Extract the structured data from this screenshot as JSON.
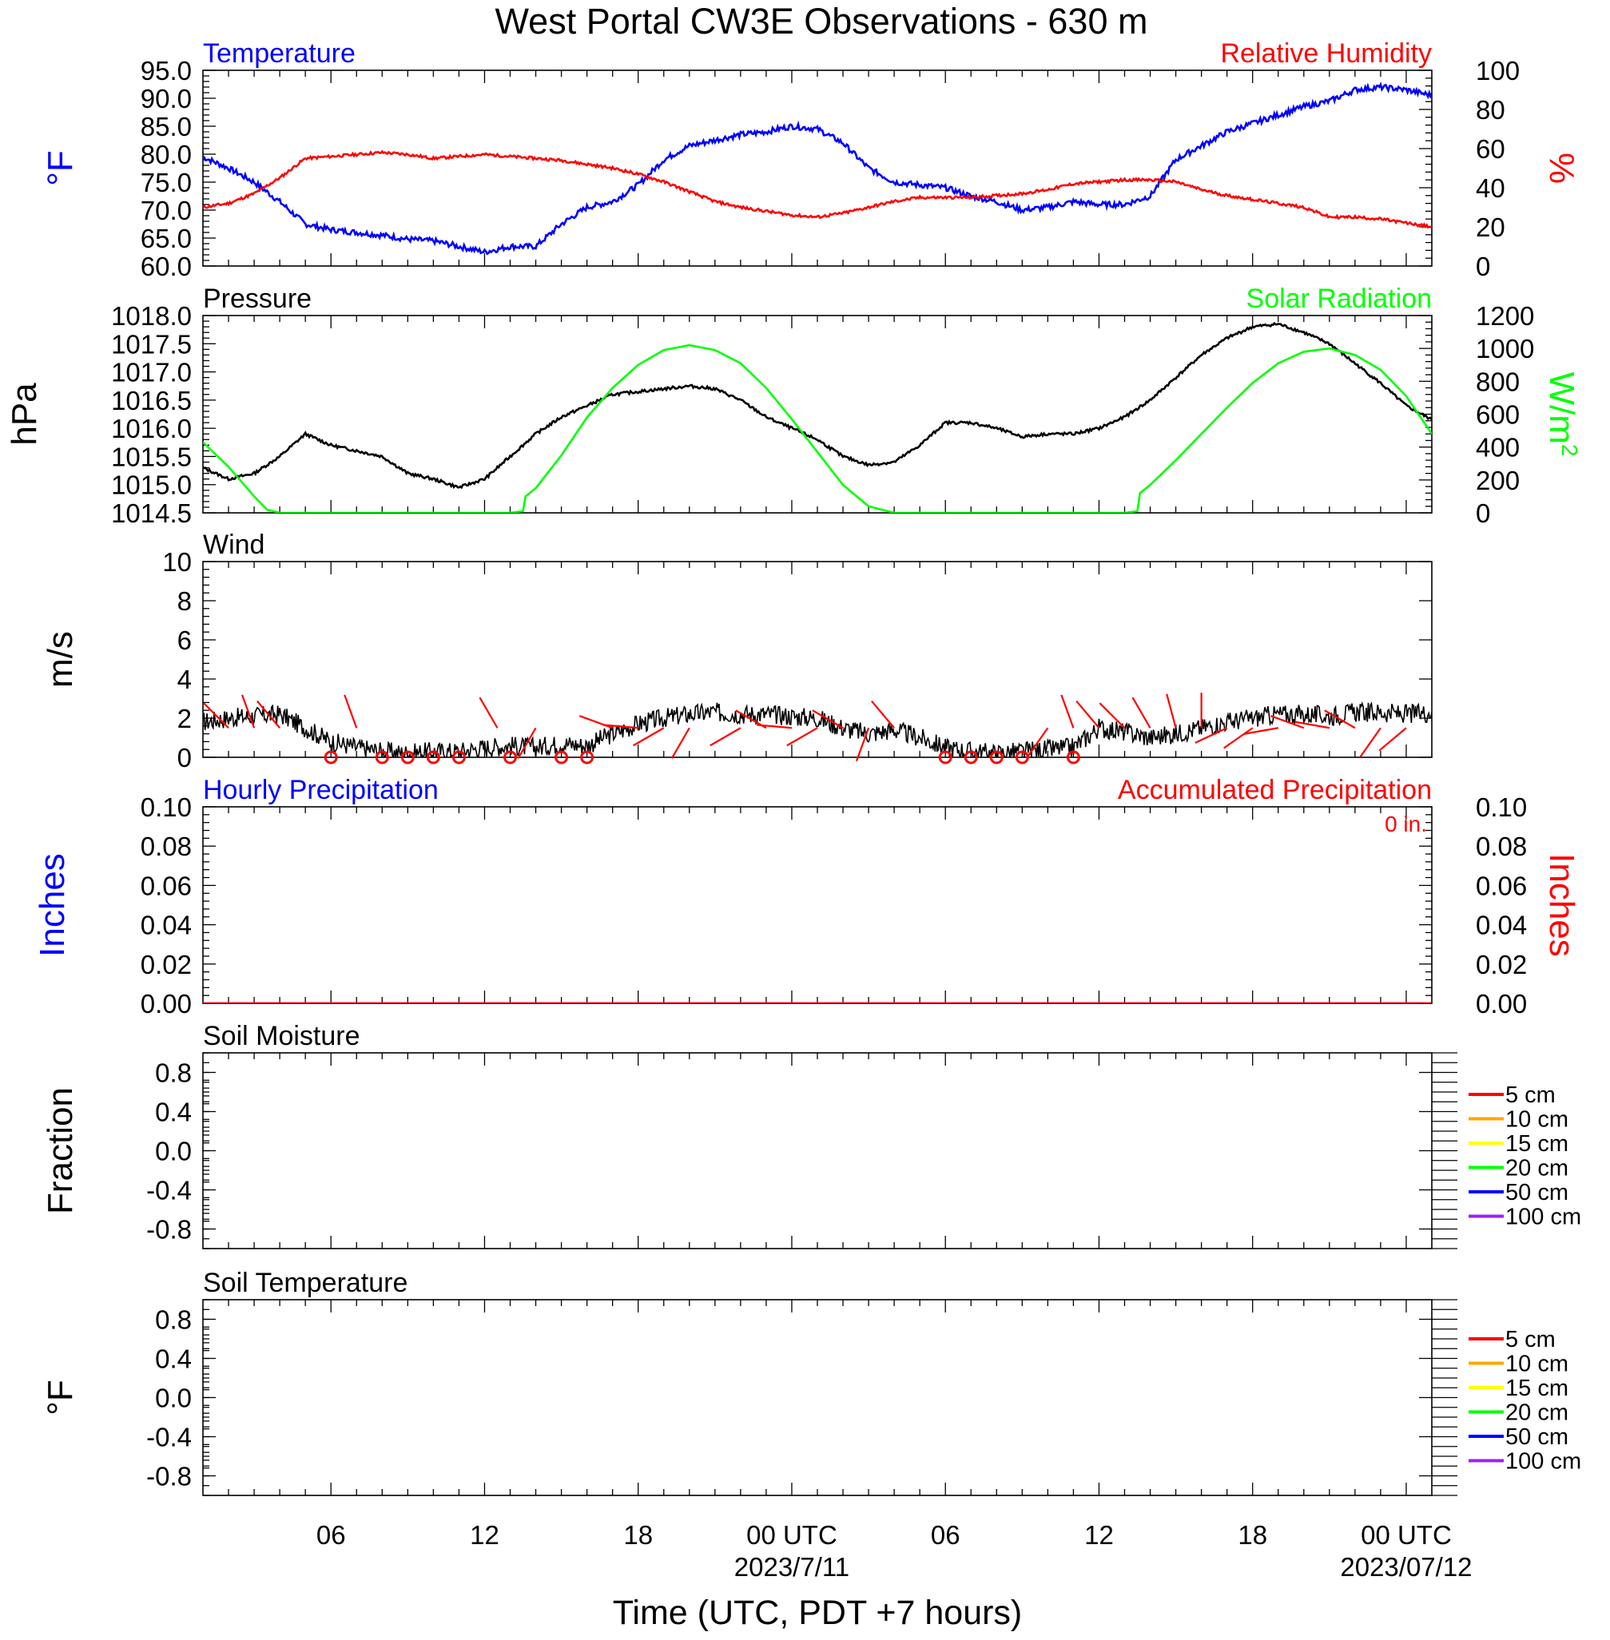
{
  "figure_title": "West Portal CW3E Observations - 630 m",
  "x_axis": {
    "label": "Time (UTC, PDT +7 hours)",
    "tick_labels": [
      "06",
      "12",
      "18",
      "00 UTC",
      "06",
      "12",
      "18",
      "00 UTC"
    ],
    "tick_hours": [
      6,
      12,
      18,
      24,
      30,
      36,
      42,
      48
    ],
    "date_labels": [
      "2023/7/11",
      "2023/07/12"
    ],
    "date_hours": [
      24,
      48
    ],
    "range_hours": [
      1,
      49
    ]
  },
  "colors": {
    "temperature": "#0000ff",
    "humidity": "#ff0000",
    "pressure": "#000000",
    "solar": "#00ff00",
    "wind": "#000000",
    "wind_barb": "#ff0000",
    "hourly_precip": "#0000ff",
    "accum_precip": "#ff0000"
  },
  "legend_colors": [
    "#ff0000",
    "#ffa500",
    "#ffff00",
    "#00ff00",
    "#0000ff",
    "#a020f0"
  ],
  "chart_data": [
    {
      "id": "temp_rh",
      "type": "line",
      "title_left": "Temperature",
      "title_right": "Relative Humidity",
      "ylabel_left": "°F",
      "ylabel_right": "%",
      "ylim_left": [
        60,
        95
      ],
      "yticks_left": [
        "95.0",
        "90.0",
        "85.0",
        "80.0",
        "75.0",
        "70.0",
        "65.0",
        "60.0"
      ],
      "ylim_right": [
        0,
        100
      ],
      "yticks_right": [
        "100",
        "80",
        "60",
        "40",
        "20",
        "0"
      ],
      "series": [
        {
          "name": "Temperature",
          "axis": "left",
          "x": [
            1,
            2,
            3,
            4,
            5,
            6,
            7,
            8,
            9,
            10,
            11,
            12,
            13,
            14,
            15,
            16,
            17,
            18,
            19,
            20,
            21,
            22,
            23,
            24,
            25,
            26,
            27,
            28,
            29,
            30,
            31,
            32,
            33,
            34,
            35,
            36,
            37,
            38,
            39,
            40,
            41,
            42,
            43,
            44,
            45,
            46,
            47,
            48,
            49
          ],
          "y": [
            79.5,
            77.5,
            75,
            71.5,
            67.5,
            66.5,
            66,
            65.5,
            64.8,
            64.5,
            63.5,
            62.5,
            63.5,
            63.5,
            67.5,
            70.5,
            71.5,
            74.5,
            79,
            81.5,
            82.5,
            83.5,
            84,
            85,
            84.5,
            82,
            77.5,
            75,
            74.5,
            74,
            72.5,
            71.5,
            70,
            70.5,
            71.5,
            71,
            71,
            72.5,
            79,
            81.5,
            84,
            85.5,
            87,
            88.5,
            89.5,
            91.5,
            92,
            91.5,
            90.5
          ]
        },
        {
          "name": "Relative Humidity",
          "axis": "right",
          "x": [
            1,
            2,
            3,
            4,
            5,
            6,
            7,
            8,
            9,
            10,
            11,
            12,
            13,
            14,
            15,
            16,
            17,
            18,
            19,
            20,
            21,
            22,
            23,
            24,
            25,
            26,
            27,
            28,
            29,
            30,
            31,
            32,
            33,
            34,
            35,
            36,
            37,
            38,
            39,
            40,
            41,
            42,
            43,
            44,
            45,
            46,
            47,
            48,
            49
          ],
          "y": [
            30,
            32,
            37,
            45,
            55,
            56,
            57,
            58,
            57,
            55,
            56,
            57,
            56,
            55,
            54,
            52,
            50,
            47,
            43,
            38,
            33,
            30,
            28,
            26,
            25,
            27,
            30,
            33,
            35,
            35,
            35,
            36,
            37,
            39,
            42,
            43,
            44,
            44,
            43,
            39,
            36,
            34,
            32,
            30,
            25,
            25,
            24,
            22,
            20
          ]
        }
      ]
    },
    {
      "id": "pressure_solar",
      "type": "line",
      "title_left": "Pressure",
      "title_right": "Solar Radiation",
      "ylabel_left": "hPa",
      "ylabel_right": "W/m",
      "ylabel_right_sup": "2",
      "ylim_left": [
        1014.5,
        1018.0
      ],
      "yticks_left": [
        "1018.0",
        "1017.5",
        "1017.0",
        "1016.5",
        "1016.0",
        "1015.5",
        "1015.0",
        "1014.5"
      ],
      "ylim_right": [
        0,
        1200
      ],
      "yticks_right": [
        "1200",
        "1000",
        "800",
        "600",
        "400",
        "200",
        "0"
      ],
      "series": [
        {
          "name": "Pressure",
          "axis": "left",
          "x": [
            1,
            2,
            3,
            4,
            5,
            6,
            7,
            8,
            9,
            10,
            11,
            12,
            13,
            14,
            15,
            16,
            17,
            18,
            19,
            20,
            21,
            22,
            23,
            24,
            25,
            26,
            27,
            28,
            29,
            30,
            31,
            32,
            33,
            34,
            35,
            36,
            37,
            38,
            39,
            40,
            41,
            42,
            43,
            44,
            45,
            46,
            47,
            48,
            49
          ],
          "y": [
            1015.3,
            1015.1,
            1015.2,
            1015.5,
            1015.9,
            1015.7,
            1015.6,
            1015.5,
            1015.2,
            1015.1,
            1014.95,
            1015.1,
            1015.5,
            1015.9,
            1016.2,
            1016.4,
            1016.6,
            1016.65,
            1016.7,
            1016.75,
            1016.7,
            1016.5,
            1016.2,
            1016.0,
            1015.8,
            1015.5,
            1015.35,
            1015.4,
            1015.7,
            1016.1,
            1016.1,
            1016.0,
            1015.85,
            1015.9,
            1015.9,
            1016.0,
            1016.2,
            1016.5,
            1016.9,
            1017.3,
            1017.6,
            1017.8,
            1017.85,
            1017.7,
            1017.5,
            1017.15,
            1016.8,
            1016.4,
            1016.15
          ]
        },
        {
          "name": "Solar Radiation",
          "axis": "right",
          "x": [
            1,
            2,
            3,
            3.5,
            4,
            13,
            13.5,
            13.6,
            14,
            15,
            16,
            17,
            18,
            19,
            20,
            21,
            22,
            23,
            24,
            25,
            26,
            27,
            28,
            28.5,
            37,
            37.5,
            37.6,
            38,
            39,
            40,
            41,
            42,
            43,
            44,
            45,
            46,
            47,
            48,
            49
          ],
          "y": [
            430,
            280,
            100,
            20,
            0,
            0,
            10,
            100,
            150,
            350,
            580,
            760,
            900,
            990,
            1020,
            990,
            910,
            760,
            570,
            370,
            170,
            40,
            0,
            0,
            0,
            10,
            120,
            170,
            320,
            480,
            640,
            790,
            910,
            980,
            1000,
            960,
            870,
            710,
            480
          ]
        }
      ]
    },
    {
      "id": "wind",
      "type": "line",
      "title_left": "Wind",
      "ylabel_left": "m/s",
      "ylim_left": [
        0,
        10
      ],
      "yticks_left": [
        "10",
        "8",
        "6",
        "4",
        "2",
        "0"
      ],
      "series": [
        {
          "name": "Wind",
          "axis": "left",
          "x": [
            1,
            2,
            3,
            4,
            5,
            6,
            7,
            8,
            9,
            10,
            11,
            12,
            13,
            14,
            15,
            16,
            17,
            18,
            19,
            20,
            21,
            22,
            23,
            24,
            25,
            26,
            27,
            28,
            29,
            30,
            31,
            32,
            33,
            34,
            35,
            36,
            37,
            38,
            39,
            40,
            41,
            42,
            43,
            44,
            45,
            46,
            47,
            48,
            49
          ],
          "y": [
            1.8,
            2.0,
            2.1,
            2.2,
            1.5,
            0.8,
            0.5,
            0.3,
            0.2,
            0.3,
            0.3,
            0.5,
            0.6,
            0.5,
            0.7,
            0.6,
            1.2,
            1.7,
            2.0,
            2.2,
            2.3,
            2.2,
            2.2,
            2.1,
            2.0,
            1.5,
            1.2,
            1.4,
            1.0,
            0.5,
            0.3,
            0.2,
            0.3,
            0.4,
            0.5,
            1.5,
            1.3,
            1.0,
            1.2,
            1.5,
            1.8,
            2.0,
            2.2,
            2.2,
            2.1,
            2.3,
            2.3,
            2.2,
            2.3
          ]
        }
      ],
      "calm_hours": [
        6,
        8,
        9,
        10,
        11,
        13,
        15,
        16,
        30,
        31,
        32,
        33,
        35
      ],
      "barbs": [
        {
          "h": 2,
          "deg": 315
        },
        {
          "h": 3,
          "deg": 340
        },
        {
          "h": 4,
          "deg": 320
        },
        {
          "h": 7,
          "deg": 340
        },
        {
          "h": 12.5,
          "deg": 330
        },
        {
          "h": 14,
          "deg": 210
        },
        {
          "h": 17,
          "deg": 290
        },
        {
          "h": 18,
          "deg": 275
        },
        {
          "h": 19,
          "deg": 240
        },
        {
          "h": 20,
          "deg": 210
        },
        {
          "h": 22,
          "deg": 240
        },
        {
          "h": 23,
          "deg": 300
        },
        {
          "h": 24,
          "deg": 275
        },
        {
          "h": 25,
          "deg": 240
        },
        {
          "h": 26,
          "deg": 300
        },
        {
          "h": 27,
          "deg": 200
        },
        {
          "h": 28,
          "deg": 320
        },
        {
          "h": 34,
          "deg": 215
        },
        {
          "h": 35,
          "deg": 340
        },
        {
          "h": 36,
          "deg": 320
        },
        {
          "h": 37,
          "deg": 315
        },
        {
          "h": 38,
          "deg": 330
        },
        {
          "h": 39,
          "deg": 345
        },
        {
          "h": 40,
          "deg": 0
        },
        {
          "h": 41,
          "deg": 245
        },
        {
          "h": 42,
          "deg": 235
        },
        {
          "h": 43,
          "deg": 260
        },
        {
          "h": 44,
          "deg": 290
        },
        {
          "h": 45,
          "deg": 280
        },
        {
          "h": 46,
          "deg": 300
        },
        {
          "h": 47,
          "deg": 215
        },
        {
          "h": 48,
          "deg": 230
        }
      ]
    },
    {
      "id": "precip",
      "type": "line",
      "title_left": "Hourly Precipitation",
      "title_right": "Accumulated Precipitation",
      "annotation": "0 in.",
      "ylabel_left": "Inches",
      "ylabel_right": "Inches",
      "ylim_left": [
        0,
        0.1
      ],
      "yticks_left": [
        "0.10",
        "0.08",
        "0.06",
        "0.04",
        "0.02",
        "0.00"
      ],
      "ylim_right": [
        0,
        0.1
      ],
      "yticks_right": [
        "0.10",
        "0.08",
        "0.06",
        "0.04",
        "0.02",
        "0.00"
      ],
      "series": [
        {
          "name": "Hourly Precipitation",
          "axis": "left",
          "x": [
            1,
            49
          ],
          "y": [
            0,
            0
          ]
        },
        {
          "name": "Accumulated Precipitation",
          "axis": "right",
          "x": [
            1,
            49
          ],
          "y": [
            0,
            0
          ]
        }
      ]
    },
    {
      "id": "soil_moisture",
      "type": "line",
      "title_left": "Soil Moisture",
      "ylabel_left": "Fraction",
      "ylim_left": [
        -1,
        1
      ],
      "yticks_left": [
        "0.8",
        "0.4",
        "0.0",
        "-0.4",
        "-0.8"
      ],
      "legend": [
        "5 cm",
        "10 cm",
        "15 cm",
        "20 cm",
        "50 cm",
        "100 cm"
      ],
      "series": []
    },
    {
      "id": "soil_temp",
      "type": "line",
      "title_left": "Soil Temperature",
      "ylabel_left": "°F",
      "ylim_left": [
        -1,
        1
      ],
      "yticks_left": [
        "0.8",
        "0.4",
        "0.0",
        "-0.4",
        "-0.8"
      ],
      "legend": [
        "5 cm",
        "10 cm",
        "15 cm",
        "20 cm",
        "50 cm",
        "100 cm"
      ],
      "series": []
    }
  ]
}
